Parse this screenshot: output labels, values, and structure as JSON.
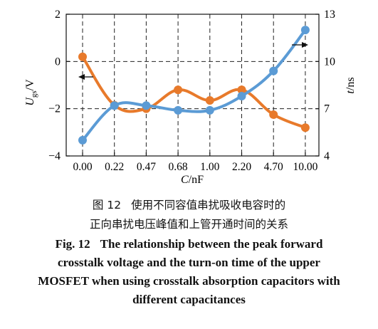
{
  "chart_data": {
    "type": "line",
    "xlabel": "C/nF",
    "categories": [
      "0.00",
      "0.22",
      "0.47",
      "0.68",
      "1.00",
      "2.20",
      "4.70",
      "10.00"
    ],
    "y_left": {
      "label": "Ugs/V",
      "ticks": [
        "2",
        "0",
        "−2",
        "−4"
      ],
      "range": [
        -4,
        2
      ]
    },
    "y_right": {
      "label": "t/ns",
      "ticks": [
        "13",
        "10",
        "7",
        "4"
      ],
      "range": [
        4,
        13
      ]
    },
    "grid": "dashed verticals at categories, dashed horizontals at 0 and −2",
    "series": [
      {
        "axis": "left",
        "color": "#e87a2b",
        "arrow": "left",
        "values": [
          0.2,
          -1.85,
          -2.0,
          -1.2,
          -1.65,
          -1.2,
          -2.25,
          -2.8
        ]
      },
      {
        "axis": "right",
        "color": "#5b9bd5",
        "arrow": "right",
        "values": [
          5.0,
          7.2,
          7.2,
          6.9,
          6.9,
          7.8,
          9.4,
          12.0
        ]
      }
    ]
  },
  "caption": {
    "cn_fig": "图 12",
    "cn_line1": "使用不同容值串扰吸收电容时的",
    "cn_line2": "正向串扰电压峰值和上管开通时间的关系",
    "en_fig": "Fig. 12",
    "en_line1": "The relationship between the peak forward",
    "en_line2": "crosstalk voltage and the turn-on time of the upper",
    "en_line3": "MOSFET when using crosstalk absorption capacitors with",
    "en_line4": "different capacitances"
  }
}
